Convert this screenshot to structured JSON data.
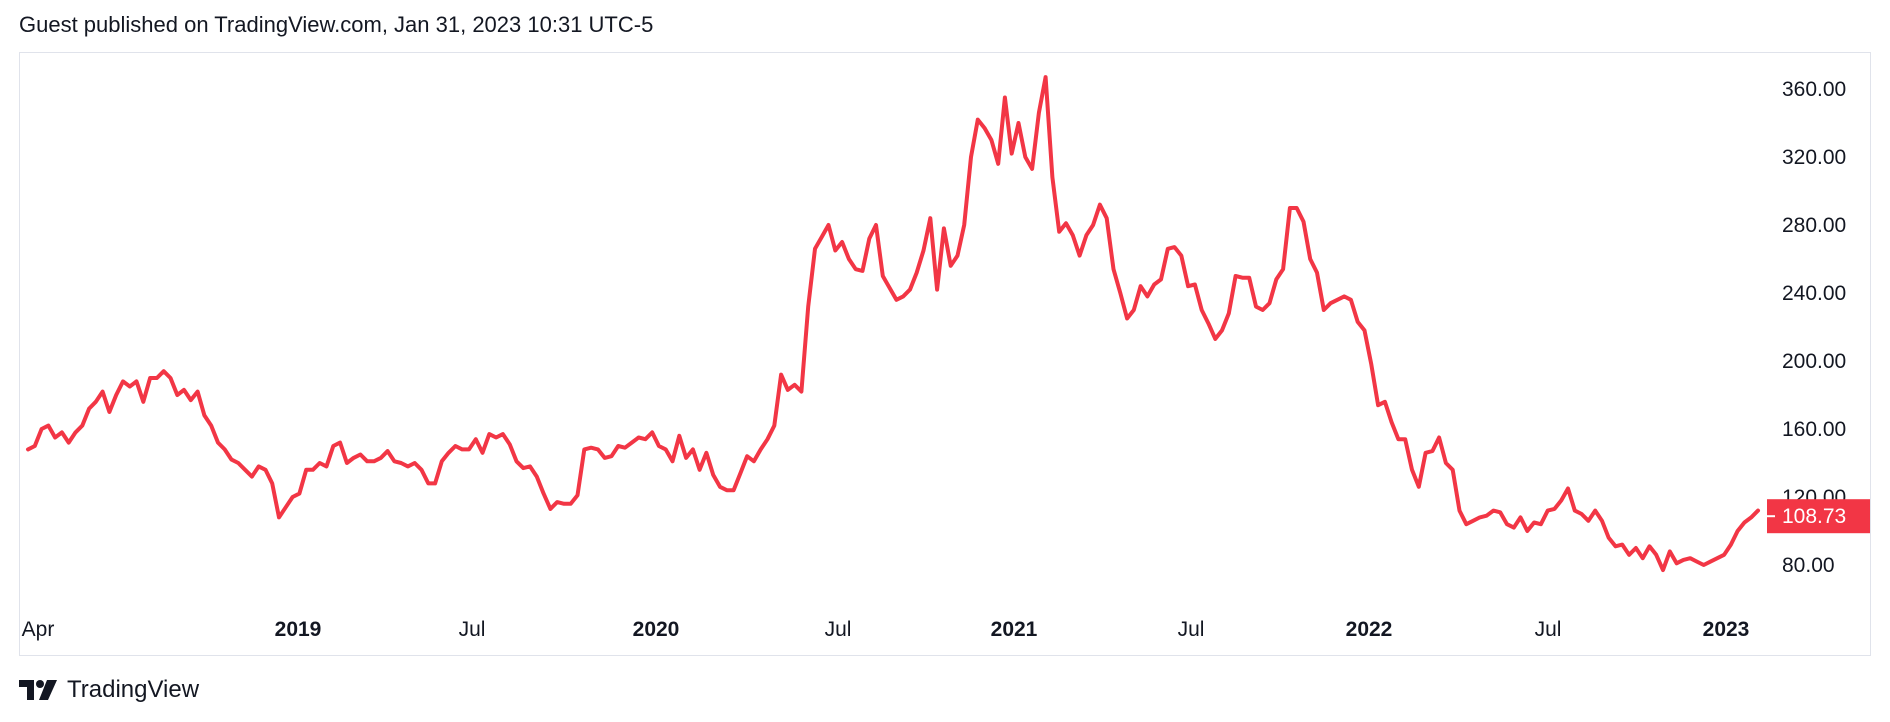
{
  "header": {
    "text": "Guest published on TradingView.com, Jan 31, 2023 10:31 UTC-5"
  },
  "brand": {
    "name": "TradingView",
    "icon": "tradingview-logo-icon"
  },
  "colors": {
    "line": "#f23645",
    "badge_bg": "#f23645",
    "badge_text": "#ffffff",
    "text": "#131722",
    "border": "#e0e3eb"
  },
  "chart_data": {
    "type": "line",
    "title": "",
    "xlabel": "",
    "ylabel": "",
    "grid": false,
    "ylim": [
      44,
      372
    ],
    "y_ticks": [
      "80.00",
      "120.00",
      "160.00",
      "200.00",
      "240.00",
      "280.00",
      "320.00",
      "360.00"
    ],
    "x_ticks": [
      {
        "label": "Apr",
        "bold": false
      },
      {
        "label": "2019",
        "bold": true
      },
      {
        "label": "Jul",
        "bold": false
      },
      {
        "label": "2020",
        "bold": true
      },
      {
        "label": "Jul",
        "bold": false
      },
      {
        "label": "2021",
        "bold": true
      },
      {
        "label": "Jul",
        "bold": false
      },
      {
        "label": "2022",
        "bold": true
      },
      {
        "label": "Jul",
        "bold": false
      },
      {
        "label": "2023",
        "bold": true
      }
    ],
    "last_price": {
      "value": 108.73,
      "label": "108.73"
    },
    "series": [
      {
        "values": [
          148,
          150,
          160,
          162,
          155,
          158,
          152,
          158,
          162,
          172,
          176,
          182,
          170,
          180,
          188,
          185,
          188,
          176,
          190,
          190,
          194,
          190,
          180,
          183,
          177,
          182,
          168,
          162,
          152,
          148,
          142,
          140,
          136,
          132,
          138,
          136,
          128,
          108,
          114,
          120,
          122,
          136,
          136,
          140,
          138,
          150,
          152,
          140,
          143,
          145,
          141,
          141,
          143,
          147,
          141,
          140,
          138,
          140,
          136,
          128,
          128,
          141,
          146,
          150,
          148,
          148,
          154,
          146,
          157,
          155,
          157,
          151,
          141,
          137,
          138,
          132,
          122,
          113,
          117,
          116,
          116,
          121,
          148,
          149,
          148,
          143,
          144,
          150,
          149,
          152,
          155,
          154,
          158,
          150,
          148,
          141,
          156,
          143,
          148,
          136,
          146,
          133,
          126,
          124,
          124,
          134,
          144,
          141,
          148,
          154,
          162,
          192,
          183,
          186,
          182,
          232,
          266,
          273,
          280,
          265,
          270,
          260,
          254,
          253,
          272,
          280,
          250,
          243,
          236,
          238,
          242,
          252,
          265,
          284,
          242,
          278,
          256,
          262,
          280,
          320,
          342,
          337,
          330,
          316,
          355,
          322,
          340,
          320,
          313,
          346,
          367,
          308,
          276,
          281,
          274,
          262,
          274,
          280,
          292,
          284,
          254,
          240,
          225,
          230,
          244,
          238,
          245,
          248,
          266,
          267,
          262,
          244,
          245,
          230,
          222,
          213,
          218,
          228,
          250,
          249,
          249,
          232,
          230,
          234,
          248,
          254,
          290,
          290,
          282,
          260,
          252,
          230,
          234,
          236,
          238,
          236,
          223,
          218,
          198,
          174,
          176,
          164,
          154,
          154,
          136,
          126,
          146,
          147,
          155,
          140,
          136,
          112,
          104,
          106,
          108,
          109,
          112,
          111,
          104,
          102,
          108,
          100,
          105,
          104,
          112,
          113,
          118,
          125,
          112,
          110,
          106,
          112,
          106,
          96,
          91,
          92,
          86,
          90,
          84,
          91,
          86,
          77,
          88,
          81,
          83,
          84,
          82,
          80,
          82,
          84,
          86,
          92,
          100,
          105,
          108,
          112
        ]
      }
    ]
  }
}
